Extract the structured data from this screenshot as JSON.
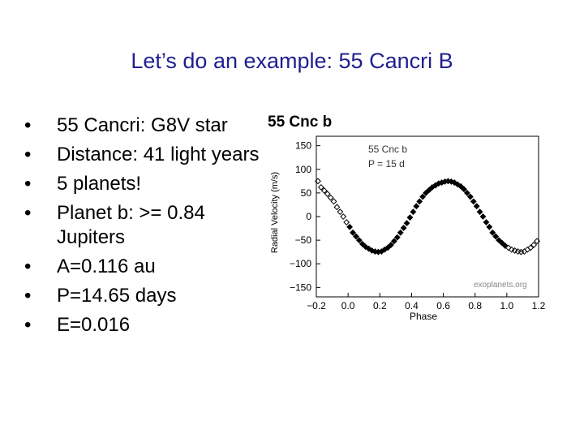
{
  "slide": {
    "title": "Let’s do an example:  55 Cancri B",
    "bullets": [
      "55 Cancri: G8V star",
      "Distance: 41 light years",
      "5 planets!",
      "Planet b: >= 0.84 Jupiters",
      "A=0.116 au",
      "P=14.65 days",
      "E=0.016"
    ]
  },
  "figure": {
    "header": "55 Cnc b",
    "legend_lines": [
      "55 Cnc b",
      "P = 15 d"
    ],
    "credit": "exoplanets.org"
  },
  "chart_data": {
    "type": "scatter",
    "xlabel": "Phase",
    "ylabel": "Radial Velocity  (m/s)",
    "xlim": [
      -0.2,
      1.2
    ],
    "ylim": [
      -170,
      170
    ],
    "xticks": [
      "−0.2",
      "0.0",
      "0.2",
      "0.4",
      "0.6",
      "0.8",
      "1.0",
      "1.2"
    ],
    "yticks": [
      "150",
      "100",
      "50",
      "0",
      "−50",
      "−100",
      "−150"
    ],
    "xtick_values": [
      -0.2,
      0.0,
      0.2,
      0.4,
      0.6,
      0.8,
      1.0,
      1.2
    ],
    "ytick_values": [
      150,
      100,
      50,
      0,
      -50,
      -100,
      -150
    ],
    "grid": false,
    "series": [
      {
        "x": [
          -0.19,
          -0.17,
          -0.15,
          -0.13,
          -0.11,
          -0.09,
          -0.07,
          -0.05,
          -0.03,
          -0.01,
          0.01,
          0.03,
          0.05,
          0.07,
          0.09,
          0.11,
          0.13,
          0.15,
          0.17,
          0.19,
          0.21,
          0.23,
          0.25,
          0.27,
          0.29,
          0.31,
          0.33,
          0.35,
          0.37,
          0.39,
          0.41,
          0.43,
          0.45,
          0.47,
          0.49,
          0.51,
          0.53,
          0.55,
          0.57,
          0.59,
          0.61,
          0.63,
          0.65,
          0.67,
          0.69,
          0.71,
          0.73,
          0.75,
          0.77,
          0.79,
          0.81,
          0.83,
          0.85,
          0.87,
          0.89,
          0.91,
          0.93,
          0.95,
          0.97,
          0.99,
          1.01,
          1.03,
          1.05,
          1.07,
          1.09,
          1.11,
          1.13,
          1.15,
          1.17,
          1.19
        ],
        "y": [
          75,
          62,
          55,
          48,
          40,
          32,
          20,
          10,
          0,
          -12,
          -22,
          -34,
          -42,
          -50,
          -58,
          -64,
          -68,
          -72,
          -74,
          -75,
          -74,
          -70,
          -66,
          -60,
          -52,
          -44,
          -34,
          -24,
          -14,
          -2,
          10,
          22,
          32,
          42,
          50,
          56,
          62,
          66,
          70,
          72,
          74,
          75,
          74,
          72,
          68,
          64,
          58,
          50,
          42,
          32,
          22,
          10,
          0,
          -12,
          -22,
          -34,
          -42,
          -50,
          -56,
          -62,
          -66,
          -70,
          -72,
          -74,
          -75,
          -74,
          -70,
          -66,
          -60,
          -52
        ],
        "marker": "diamond"
      }
    ]
  }
}
